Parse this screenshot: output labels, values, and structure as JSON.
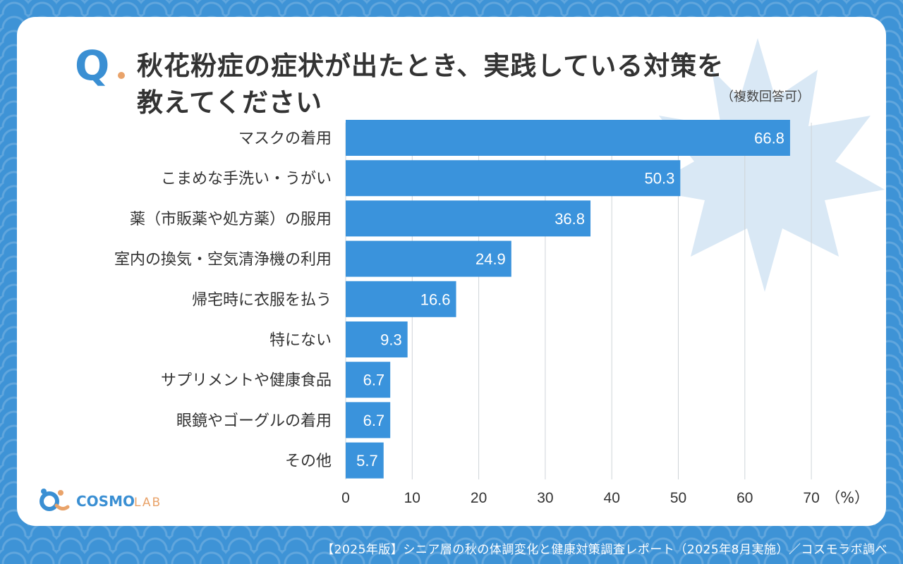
{
  "header": {
    "q_label": "Q",
    "title_line1": "秋花粉症の症状が出たとき、実践している対策を",
    "title_line2": "教えてください",
    "note": "（複数回答可）"
  },
  "logo": {
    "text": "COSMO",
    "text2": "LAB",
    "colors": {
      "blue": "#3a8fd3",
      "orange": "#e9a36a"
    }
  },
  "footer": {
    "text": "【2025年版】シニア層の秋の体調変化と健康対策調査レポート（2025年8月実施）／コスモラボ調べ"
  },
  "colors": {
    "bar": "#3a93dc",
    "leaf": "#d9e8f5",
    "grid": "#cfd4d8"
  },
  "chart_data": {
    "type": "bar",
    "orientation": "horizontal",
    "title": "秋花粉症の症状が出たとき、実践している対策を教えてください",
    "categories": [
      "マスクの着用",
      "こまめな手洗い・うがい",
      "薬（市販薬や処方薬）の服用",
      "室内の換気・空気清浄機の利用",
      "帰宅時に衣服を払う",
      "特にない",
      "サプリメントや健康食品",
      "眼鏡やゴーグルの着用",
      "その他"
    ],
    "values": [
      66.8,
      50.3,
      36.8,
      24.9,
      16.6,
      9.3,
      6.7,
      6.7,
      5.7
    ],
    "value_labels": [
      "66.8",
      "50.3",
      "36.8",
      "24.9",
      "16.6",
      "9.3",
      "6.7",
      "6.7",
      "5.7"
    ],
    "xlim": [
      0,
      70
    ],
    "ticks": [
      "0",
      "10",
      "20",
      "30",
      "40",
      "50",
      "60",
      "70"
    ],
    "unit_label": "（%）",
    "grid": true
  }
}
